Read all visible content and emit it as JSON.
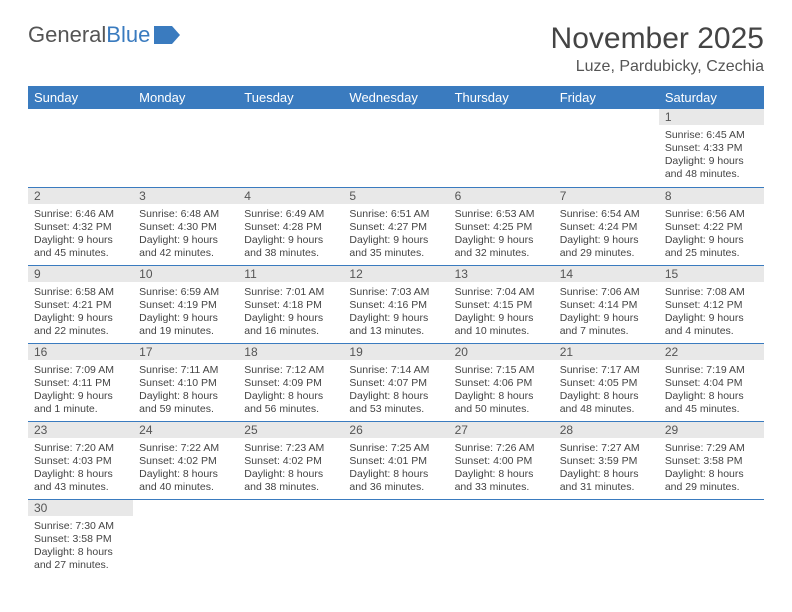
{
  "logo": {
    "text1": "General",
    "text2": "Blue"
  },
  "title": "November 2025",
  "location": "Luze, Pardubicky, Czechia",
  "header_bg": "#3a7bbf",
  "weekdays": [
    "Sunday",
    "Monday",
    "Tuesday",
    "Wednesday",
    "Thursday",
    "Friday",
    "Saturday"
  ],
  "weeks": [
    [
      null,
      null,
      null,
      null,
      null,
      null,
      {
        "d": "1",
        "sr": "Sunrise: 6:45 AM",
        "ss": "Sunset: 4:33 PM",
        "dl": "Daylight: 9 hours and 48 minutes."
      }
    ],
    [
      {
        "d": "2",
        "sr": "Sunrise: 6:46 AM",
        "ss": "Sunset: 4:32 PM",
        "dl": "Daylight: 9 hours and 45 minutes."
      },
      {
        "d": "3",
        "sr": "Sunrise: 6:48 AM",
        "ss": "Sunset: 4:30 PM",
        "dl": "Daylight: 9 hours and 42 minutes."
      },
      {
        "d": "4",
        "sr": "Sunrise: 6:49 AM",
        "ss": "Sunset: 4:28 PM",
        "dl": "Daylight: 9 hours and 38 minutes."
      },
      {
        "d": "5",
        "sr": "Sunrise: 6:51 AM",
        "ss": "Sunset: 4:27 PM",
        "dl": "Daylight: 9 hours and 35 minutes."
      },
      {
        "d": "6",
        "sr": "Sunrise: 6:53 AM",
        "ss": "Sunset: 4:25 PM",
        "dl": "Daylight: 9 hours and 32 minutes."
      },
      {
        "d": "7",
        "sr": "Sunrise: 6:54 AM",
        "ss": "Sunset: 4:24 PM",
        "dl": "Daylight: 9 hours and 29 minutes."
      },
      {
        "d": "8",
        "sr": "Sunrise: 6:56 AM",
        "ss": "Sunset: 4:22 PM",
        "dl": "Daylight: 9 hours and 25 minutes."
      }
    ],
    [
      {
        "d": "9",
        "sr": "Sunrise: 6:58 AM",
        "ss": "Sunset: 4:21 PM",
        "dl": "Daylight: 9 hours and 22 minutes."
      },
      {
        "d": "10",
        "sr": "Sunrise: 6:59 AM",
        "ss": "Sunset: 4:19 PM",
        "dl": "Daylight: 9 hours and 19 minutes."
      },
      {
        "d": "11",
        "sr": "Sunrise: 7:01 AM",
        "ss": "Sunset: 4:18 PM",
        "dl": "Daylight: 9 hours and 16 minutes."
      },
      {
        "d": "12",
        "sr": "Sunrise: 7:03 AM",
        "ss": "Sunset: 4:16 PM",
        "dl": "Daylight: 9 hours and 13 minutes."
      },
      {
        "d": "13",
        "sr": "Sunrise: 7:04 AM",
        "ss": "Sunset: 4:15 PM",
        "dl": "Daylight: 9 hours and 10 minutes."
      },
      {
        "d": "14",
        "sr": "Sunrise: 7:06 AM",
        "ss": "Sunset: 4:14 PM",
        "dl": "Daylight: 9 hours and 7 minutes."
      },
      {
        "d": "15",
        "sr": "Sunrise: 7:08 AM",
        "ss": "Sunset: 4:12 PM",
        "dl": "Daylight: 9 hours and 4 minutes."
      }
    ],
    [
      {
        "d": "16",
        "sr": "Sunrise: 7:09 AM",
        "ss": "Sunset: 4:11 PM",
        "dl": "Daylight: 9 hours and 1 minute."
      },
      {
        "d": "17",
        "sr": "Sunrise: 7:11 AM",
        "ss": "Sunset: 4:10 PM",
        "dl": "Daylight: 8 hours and 59 minutes."
      },
      {
        "d": "18",
        "sr": "Sunrise: 7:12 AM",
        "ss": "Sunset: 4:09 PM",
        "dl": "Daylight: 8 hours and 56 minutes."
      },
      {
        "d": "19",
        "sr": "Sunrise: 7:14 AM",
        "ss": "Sunset: 4:07 PM",
        "dl": "Daylight: 8 hours and 53 minutes."
      },
      {
        "d": "20",
        "sr": "Sunrise: 7:15 AM",
        "ss": "Sunset: 4:06 PM",
        "dl": "Daylight: 8 hours and 50 minutes."
      },
      {
        "d": "21",
        "sr": "Sunrise: 7:17 AM",
        "ss": "Sunset: 4:05 PM",
        "dl": "Daylight: 8 hours and 48 minutes."
      },
      {
        "d": "22",
        "sr": "Sunrise: 7:19 AM",
        "ss": "Sunset: 4:04 PM",
        "dl": "Daylight: 8 hours and 45 minutes."
      }
    ],
    [
      {
        "d": "23",
        "sr": "Sunrise: 7:20 AM",
        "ss": "Sunset: 4:03 PM",
        "dl": "Daylight: 8 hours and 43 minutes."
      },
      {
        "d": "24",
        "sr": "Sunrise: 7:22 AM",
        "ss": "Sunset: 4:02 PM",
        "dl": "Daylight: 8 hours and 40 minutes."
      },
      {
        "d": "25",
        "sr": "Sunrise: 7:23 AM",
        "ss": "Sunset: 4:02 PM",
        "dl": "Daylight: 8 hours and 38 minutes."
      },
      {
        "d": "26",
        "sr": "Sunrise: 7:25 AM",
        "ss": "Sunset: 4:01 PM",
        "dl": "Daylight: 8 hours and 36 minutes."
      },
      {
        "d": "27",
        "sr": "Sunrise: 7:26 AM",
        "ss": "Sunset: 4:00 PM",
        "dl": "Daylight: 8 hours and 33 minutes."
      },
      {
        "d": "28",
        "sr": "Sunrise: 7:27 AM",
        "ss": "Sunset: 3:59 PM",
        "dl": "Daylight: 8 hours and 31 minutes."
      },
      {
        "d": "29",
        "sr": "Sunrise: 7:29 AM",
        "ss": "Sunset: 3:58 PM",
        "dl": "Daylight: 8 hours and 29 minutes."
      }
    ],
    [
      {
        "d": "30",
        "sr": "Sunrise: 7:30 AM",
        "ss": "Sunset: 3:58 PM",
        "dl": "Daylight: 8 hours and 27 minutes."
      },
      null,
      null,
      null,
      null,
      null,
      null
    ]
  ]
}
